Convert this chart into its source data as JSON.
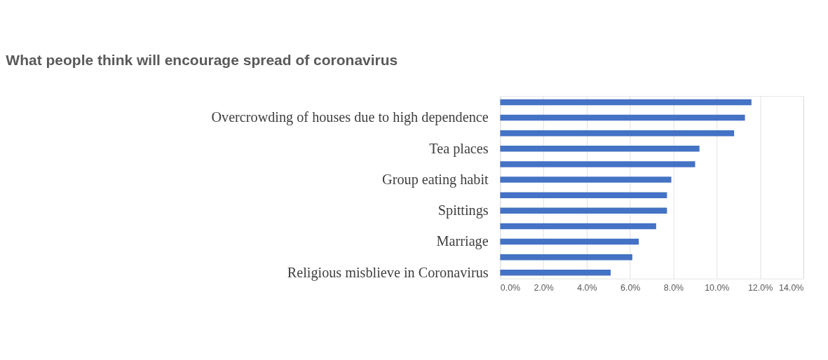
{
  "chart_data": {
    "type": "bar",
    "orientation": "horizontal",
    "title": "What people think will encourage spread of coronavirus",
    "categories": [
      null,
      "Overcrowding of houses due to high dependence",
      null,
      "Tea places",
      null,
      "Group eating habit",
      null,
      "Spittings",
      null,
      "Marriage",
      null,
      "Religious misblieve in Coronavirus"
    ],
    "values": [
      11.6,
      11.3,
      10.8,
      9.2,
      9.0,
      7.9,
      7.7,
      7.7,
      7.2,
      6.4,
      6.1,
      5.1
    ],
    "color": "#4472c4",
    "xlim": [
      0,
      14
    ],
    "xticks": [
      {
        "value": 0,
        "label": "0.0%"
      },
      {
        "value": 2,
        "label": "2.0%"
      },
      {
        "value": 4,
        "label": "4.0%"
      },
      {
        "value": 6,
        "label": "6.0%"
      },
      {
        "value": 8,
        "label": "8.0%"
      },
      {
        "value": 10,
        "label": "10.0%"
      },
      {
        "value": 12,
        "label": "12.0%"
      },
      {
        "value": 14,
        "label": "14.0%"
      }
    ],
    "grid": "x"
  }
}
